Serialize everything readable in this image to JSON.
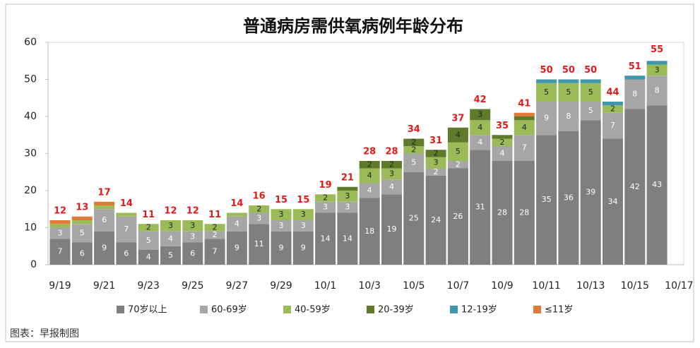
{
  "chart_data": {
    "type": "stacked_bar",
    "title": "普通病房需供氧病例年龄分布",
    "xticks": [
      "9/19",
      "9/21",
      "9/23",
      "9/25",
      "9/27",
      "9/29",
      "10/1",
      "10/3",
      "10/5",
      "10/7",
      "10/9",
      "10/11",
      "10/13",
      "10/15",
      "10/17"
    ],
    "ylim": [
      0,
      60
    ],
    "yticks": [
      0,
      10,
      20,
      30,
      40,
      50,
      60
    ],
    "series": [
      {
        "name": "70岁以上",
        "color": "#7f7f7f",
        "values": [
          7,
          6,
          9,
          6,
          4,
          5,
          6,
          7,
          9,
          11,
          9,
          9,
          14,
          14,
          18,
          19,
          25,
          24,
          26,
          31,
          28,
          28,
          35,
          36,
          39,
          34,
          42,
          43
        ]
      },
      {
        "name": "60-69岁",
        "color": "#a6a6a6",
        "values": [
          3,
          5,
          6,
          7,
          5,
          4,
          3,
          2,
          4,
          3,
          3,
          3,
          3,
          3,
          4,
          4,
          5,
          2,
          2,
          4,
          4,
          7,
          9,
          8,
          5,
          7,
          8,
          8
        ]
      },
      {
        "name": "40-59岁",
        "color": "#9bbb59",
        "values": [
          1,
          1,
          1,
          1,
          2,
          3,
          3,
          2,
          1,
          2,
          3,
          3,
          2,
          3,
          4,
          3,
          2,
          3,
          5,
          4,
          2,
          4,
          5,
          5,
          5,
          2,
          0,
          3
        ]
      },
      {
        "name": "20-39岁",
        "color": "#5f7a2a",
        "values": [
          0,
          0,
          0,
          0,
          0,
          0,
          0,
          0,
          0,
          0,
          0,
          0,
          0,
          1,
          2,
          2,
          2,
          2,
          4,
          3,
          1,
          1,
          0,
          0,
          0,
          0,
          0,
          0
        ]
      },
      {
        "name": "12-19岁",
        "color": "#3f96ad",
        "values": [
          0,
          0,
          0,
          0,
          0,
          0,
          0,
          0,
          0,
          0,
          0,
          0,
          0,
          0,
          0,
          0,
          0,
          0,
          0,
          0,
          0,
          0,
          1,
          1,
          1,
          1,
          1,
          1
        ]
      },
      {
        "name": "≤11岁",
        "color": "#e07b39",
        "values": [
          1,
          1,
          1,
          0,
          0,
          0,
          0,
          0,
          0,
          0,
          0,
          0,
          0,
          0,
          0,
          0,
          0,
          0,
          0,
          0,
          0,
          1,
          0,
          0,
          0,
          0,
          0,
          0
        ]
      }
    ],
    "totals": [
      12,
      13,
      17,
      14,
      11,
      12,
      12,
      11,
      14,
      16,
      15,
      15,
      19,
      21,
      28,
      28,
      34,
      31,
      37,
      42,
      35,
      41,
      50,
      50,
      50,
      44,
      51,
      55
    ],
    "source": "图表：早报制图"
  }
}
